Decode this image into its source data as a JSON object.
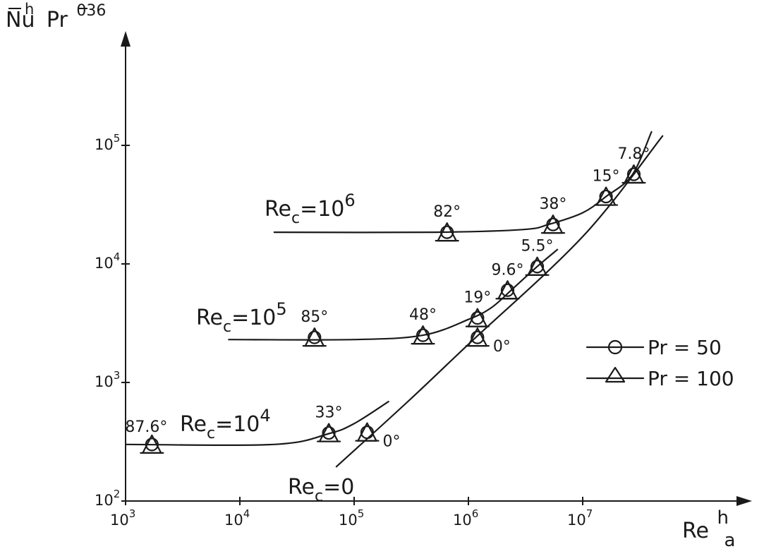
{
  "chart_data": {
    "type": "line",
    "scale": {
      "x": "log",
      "y": "log"
    },
    "xlim": [
      1000,
      100000000
    ],
    "ylim": [
      100,
      300000
    ],
    "x_ticks": [
      {
        "value": 1000,
        "base": "10",
        "exp": "3"
      },
      {
        "value": 10000,
        "base": "10",
        "exp": "4"
      },
      {
        "value": 100000,
        "base": "10",
        "exp": "5"
      },
      {
        "value": 1000000,
        "base": "10",
        "exp": "6"
      },
      {
        "value": 10000000,
        "base": "10",
        "exp": "7"
      }
    ],
    "y_ticks": [
      {
        "value": 100,
        "base": "10",
        "exp": "2"
      },
      {
        "value": 1000,
        "base": "10",
        "exp": "3"
      },
      {
        "value": 10000,
        "base": "10",
        "exp": "4"
      },
      {
        "value": 100000,
        "base": "10",
        "exp": "5"
      }
    ],
    "xlabel": {
      "base": "Re",
      "sup": "h",
      "sub": "a"
    },
    "ylabel": {
      "nu_bar": "Nu",
      "nu_sup": "h",
      "pr": "Pr",
      "pr_sup": "036"
    },
    "grid": false,
    "legend": {
      "position": "right",
      "items": [
        {
          "marker": "circle",
          "label": "Pr = 50"
        },
        {
          "marker": "triangle",
          "label": "Pr = 100"
        }
      ]
    },
    "curves": [
      {
        "label": {
          "base": "Re",
          "sub": "c",
          "eq": "=10",
          "sup": "6"
        },
        "points": [
          [
            20000,
            18500
          ],
          [
            500000,
            18500
          ],
          [
            3000000,
            19500
          ],
          [
            5000000,
            21500
          ],
          [
            10000000,
            27000
          ],
          [
            16000000,
            37000
          ],
          [
            27000000,
            56000
          ],
          [
            40000000,
            130000
          ]
        ]
      },
      {
        "label": {
          "base": "Re",
          "sub": "c",
          "eq": "=10",
          "sup": "5"
        },
        "points": [
          [
            8000,
            2300
          ],
          [
            100000,
            2300
          ],
          [
            400000,
            2500
          ],
          [
            1000000,
            3400
          ],
          [
            1600000,
            4300
          ],
          [
            2500000,
            6300
          ],
          [
            4000000,
            9500
          ],
          [
            6000000,
            13200
          ]
        ]
      },
      {
        "label": {
          "base": "Re",
          "sub": "c",
          "eq": "=10",
          "sup": "4"
        },
        "points": [
          [
            1000,
            300
          ],
          [
            20000,
            300
          ],
          [
            60000,
            370
          ],
          [
            100000,
            450
          ],
          [
            200000,
            690
          ]
        ]
      },
      {
        "label": {
          "base": "Re",
          "sub": "c",
          "eq": "=0",
          "sup": ""
        },
        "points": [
          [
            70000,
            195
          ],
          [
            300000,
            700
          ],
          [
            1000000,
            2100
          ],
          [
            10000000,
            17000
          ],
          [
            50000000,
            120000
          ]
        ]
      }
    ],
    "markers": [
      {
        "x": 1700,
        "y": 300,
        "label": "87.6°"
      },
      {
        "x": 60000,
        "y": 375,
        "label": "33°"
      },
      {
        "x": 130000,
        "y": 380,
        "label": "0°"
      },
      {
        "x": 45000,
        "y": 2400,
        "label": "85°"
      },
      {
        "x": 400000,
        "y": 2500,
        "label": "48°"
      },
      {
        "x": 1200000,
        "y": 2400,
        "label": "0°"
      },
      {
        "x": 1200000,
        "y": 3500,
        "label": "19°"
      },
      {
        "x": 2200000,
        "y": 6000,
        "label": "9.6°"
      },
      {
        "x": 4000000,
        "y": 9500,
        "label": "5.5°"
      },
      {
        "x": 650000,
        "y": 18500,
        "label": "82°"
      },
      {
        "x": 5500000,
        "y": 21500,
        "label": "38°"
      },
      {
        "x": 16000000,
        "y": 37000,
        "label": "15°"
      },
      {
        "x": 28000000,
        "y": 57000,
        "label": "7.8°"
      }
    ]
  }
}
